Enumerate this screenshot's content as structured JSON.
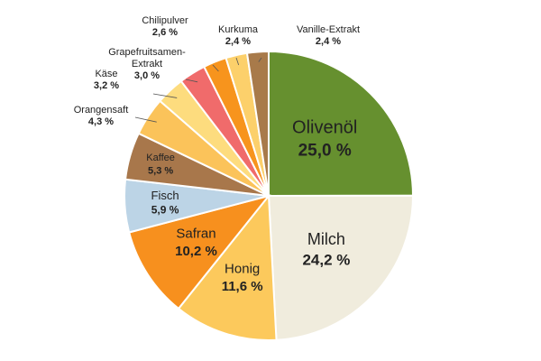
{
  "chart_data": {
    "type": "pie",
    "categories": [
      "Olivenöl",
      "Milch",
      "Honig",
      "Safran",
      "Fisch",
      "Kaffee",
      "Orangensaft",
      "Käse",
      "Grapefruitsamen-Extrakt",
      "Chilipulver",
      "Kurkuma",
      "Vanille-Extrakt"
    ],
    "values": [
      25.0,
      24.2,
      11.6,
      10.2,
      5.9,
      5.3,
      4.3,
      3.2,
      3.0,
      2.6,
      2.4,
      2.4
    ],
    "value_labels": [
      "25,0 %",
      "24,2 %",
      "11,6 %",
      "10,2 %",
      "5,9 %",
      "5,3 %",
      "4,3 %",
      "3,2 %",
      "3,0 %",
      "2,6 %",
      "2,4 %",
      "2,4 %"
    ],
    "colors": [
      "#66902f",
      "#f0ecdd",
      "#fcc95c",
      "#f7901e",
      "#bcd4e6",
      "#a8774b",
      "#fbc35a",
      "#fddc7e",
      "#f06b6b",
      "#f7941d",
      "#fcd06b",
      "#a87a4a"
    ]
  }
}
